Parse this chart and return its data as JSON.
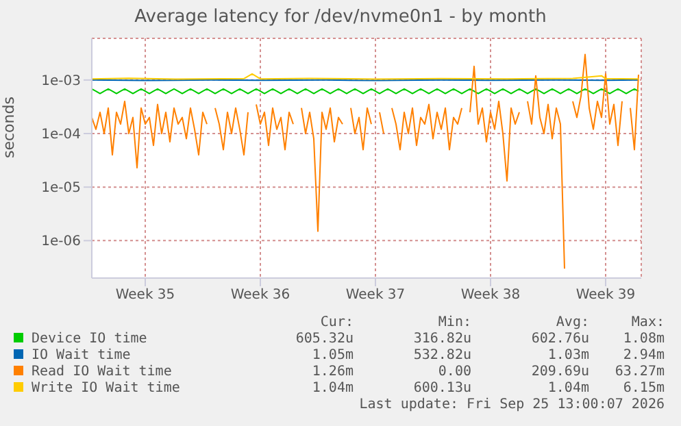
{
  "chart_data": {
    "type": "line",
    "title": "Average latency for /dev/nvme0n1 - by month",
    "ylabel": "seconds",
    "log": "y",
    "grid": true,
    "legend": "bottom",
    "marker": "none",
    "line_style": "solid",
    "xlim": [
      "2026-08-24T06:00",
      "2026-09-26T16:00"
    ],
    "xticks": [
      {
        "value": "2026-08-27T12:00",
        "label": "Week 35"
      },
      {
        "value": "2026-09-03T12:00",
        "label": "Week 36"
      },
      {
        "value": "2026-09-10T12:00",
        "label": "Week 37"
      },
      {
        "value": "2026-09-17T12:00",
        "label": "Week 38"
      },
      {
        "value": "2026-09-24T12:00",
        "label": "Week 39"
      }
    ],
    "ylim": [
      2e-07,
      0.006
    ],
    "yticks": [
      {
        "value": 1e-06,
        "label": "1e-06"
      },
      {
        "value": 1e-05,
        "label": "1e-05"
      },
      {
        "value": 0.0001,
        "label": "1e-04"
      },
      {
        "value": 0.001,
        "label": "1e-03"
      }
    ],
    "x": [
      "2026-08-24T06:00",
      "2026-08-24T12:00",
      "2026-08-24T18:00",
      "2026-08-25T00:00",
      "2026-08-25T06:00",
      "2026-08-25T12:00",
      "2026-08-25T18:00",
      "2026-08-26T00:00",
      "2026-08-26T06:00",
      "2026-08-26T12:00",
      "2026-08-26T18:00",
      "2026-08-27T00:00",
      "2026-08-27T06:00",
      "2026-08-27T12:00",
      "2026-08-27T18:00",
      "2026-08-28T00:00",
      "2026-08-28T06:00",
      "2026-08-28T12:00",
      "2026-08-28T18:00",
      "2026-08-29T00:00",
      "2026-08-29T06:00",
      "2026-08-29T12:00",
      "2026-08-29T18:00",
      "2026-08-30T00:00",
      "2026-08-30T06:00",
      "2026-08-30T12:00",
      "2026-08-30T18:00",
      "2026-08-31T00:00",
      "2026-08-31T06:00",
      "2026-08-31T12:00",
      "2026-08-31T18:00",
      "2026-09-01T00:00",
      "2026-09-01T06:00",
      "2026-09-01T12:00",
      "2026-09-01T18:00",
      "2026-09-02T00:00",
      "2026-09-02T06:00",
      "2026-09-02T12:00",
      "2026-09-02T18:00",
      "2026-09-03T00:00",
      "2026-09-03T06:00",
      "2026-09-03T12:00",
      "2026-09-03T18:00",
      "2026-09-04T00:00",
      "2026-09-04T06:00",
      "2026-09-04T12:00",
      "2026-09-04T18:00",
      "2026-09-05T00:00",
      "2026-09-05T06:00",
      "2026-09-05T12:00",
      "2026-09-05T18:00",
      "2026-09-06T00:00",
      "2026-09-06T06:00",
      "2026-09-06T12:00",
      "2026-09-06T18:00",
      "2026-09-07T00:00",
      "2026-09-07T06:00",
      "2026-09-07T12:00",
      "2026-09-07T18:00",
      "2026-09-08T00:00",
      "2026-09-08T06:00",
      "2026-09-08T12:00",
      "2026-09-08T18:00",
      "2026-09-09T00:00",
      "2026-09-09T06:00",
      "2026-09-09T12:00",
      "2026-09-09T18:00",
      "2026-09-10T00:00",
      "2026-09-10T06:00",
      "2026-09-10T12:00",
      "2026-09-10T18:00",
      "2026-09-11T00:00",
      "2026-09-11T06:00",
      "2026-09-11T12:00",
      "2026-09-11T18:00",
      "2026-09-12T00:00",
      "2026-09-12T06:00",
      "2026-09-12T12:00",
      "2026-09-12T18:00",
      "2026-09-13T00:00",
      "2026-09-13T06:00",
      "2026-09-13T12:00",
      "2026-09-13T18:00",
      "2026-09-14T00:00",
      "2026-09-14T06:00",
      "2026-09-14T12:00",
      "2026-09-14T18:00",
      "2026-09-15T00:00",
      "2026-09-15T06:00",
      "2026-09-15T12:00",
      "2026-09-15T18:00",
      "2026-09-16T00:00",
      "2026-09-16T06:00",
      "2026-09-16T12:00",
      "2026-09-16T18:00",
      "2026-09-17T00:00",
      "2026-09-17T06:00",
      "2026-09-17T12:00",
      "2026-09-17T18:00",
      "2026-09-18T00:00",
      "2026-09-18T06:00",
      "2026-09-18T12:00",
      "2026-09-18T18:00",
      "2026-09-19T00:00",
      "2026-09-19T06:00",
      "2026-09-19T12:00",
      "2026-09-19T18:00",
      "2026-09-20T00:00",
      "2026-09-20T06:00",
      "2026-09-20T12:00",
      "2026-09-20T18:00",
      "2026-09-21T00:00",
      "2026-09-21T06:00",
      "2026-09-21T12:00",
      "2026-09-21T18:00",
      "2026-09-22T00:00",
      "2026-09-22T06:00",
      "2026-09-22T12:00",
      "2026-09-22T18:00",
      "2026-09-23T00:00",
      "2026-09-23T06:00",
      "2026-09-23T12:00",
      "2026-09-23T18:00",
      "2026-09-24T00:00",
      "2026-09-24T06:00",
      "2026-09-24T12:00",
      "2026-09-24T18:00",
      "2026-09-25T00:00",
      "2026-09-25T06:00",
      "2026-09-25T12:00",
      "2026-09-25T18:00",
      "2026-09-26T00:00",
      "2026-09-26T06:00",
      "2026-09-26T12:00"
    ],
    "series": [
      {
        "name": "Device IO time",
        "color": "#00cc00",
        "values": [
          0.00068,
          0.00062,
          0.00056,
          0.00062,
          0.00068,
          0.00062,
          0.00056,
          0.00062,
          0.00068,
          0.00062,
          0.00056,
          0.00062,
          0.00068,
          0.00062,
          0.00056,
          0.00062,
          0.00068,
          0.00062,
          0.00056,
          0.00062,
          0.00068,
          0.00062,
          0.00056,
          0.00062,
          0.00068,
          0.00062,
          0.00056,
          0.00062,
          0.00068,
          0.00062,
          0.00056,
          0.00062,
          0.00068,
          0.00062,
          0.00056,
          0.00062,
          0.00068,
          0.00062,
          0.00056,
          0.00062,
          0.00068,
          0.00062,
          0.00056,
          0.00062,
          0.00068,
          0.00062,
          0.00056,
          0.00062,
          0.00068,
          0.00062,
          0.00056,
          0.00062,
          0.00068,
          0.00062,
          0.00056,
          0.00062,
          0.00068,
          0.00062,
          0.00056,
          0.00062,
          0.00068,
          0.00062,
          0.00056,
          0.00062,
          0.00068,
          0.00062,
          0.00056,
          0.00062,
          0.00068,
          0.00062,
          0.00056,
          0.00062,
          0.00068,
          0.00062,
          0.00056,
          0.00062,
          0.00068,
          0.00062,
          0.00056,
          0.00062,
          0.00068,
          0.00062,
          0.00056,
          0.00062,
          0.00068,
          0.00062,
          0.00056,
          0.00062,
          0.00068,
          0.00062,
          0.00056,
          0.00062,
          0.00068,
          0.00062,
          0.00056,
          0.00062,
          0.00068,
          0.00062,
          0.00056,
          0.00062,
          0.00068,
          0.00062,
          0.00056,
          0.00062,
          0.00068,
          0.00062,
          0.00056,
          0.00062,
          0.00068,
          0.00062,
          0.00056,
          0.00062,
          0.00068,
          0.00062,
          0.00056,
          0.00062,
          0.00068,
          0.00062,
          0.00056,
          0.00062,
          0.00068,
          0.00062,
          0.00056,
          0.00062,
          0.00068,
          0.00062,
          0.00056,
          0.00062,
          0.00068,
          0.00062,
          0.00056,
          0.00062,
          0.00068,
          0.00062
        ]
      },
      {
        "name": "IO Wait time",
        "color": "#0066b3",
        "x": [
          "2026-08-24T06:00",
          "2026-08-27T12:00",
          "2026-08-31T12:00",
          "2026-09-03T12:00",
          "2026-09-07T12:00",
          "2026-09-10T12:00",
          "2026-09-14T12:00",
          "2026-09-17T12:00",
          "2026-09-21T12:00",
          "2026-09-24T12:00",
          "2026-09-26T12:00"
        ],
        "values": [
          0.001,
          0.00098,
          0.001,
          0.00099,
          0.001,
          0.00098,
          0.001,
          0.00099,
          0.001,
          0.00099,
          0.001
        ]
      },
      {
        "name": "Read IO Wait time",
        "color": "#ff8000",
        "values": [
          0.0002,
          0.00012,
          0.00025,
          0.0001,
          0.0003,
          4e-05,
          0.00025,
          0.00015,
          0.0004,
          0.0001,
          0.0002,
          2.3e-05,
          0.0003,
          0.00015,
          0.0002,
          6e-05,
          0.00035,
          0.0001,
          0.00025,
          7e-05,
          0.0003,
          0.00015,
          0.0002,
          8e-05,
          0.0003,
          0.00012,
          4e-05,
          0.00025,
          0.00015,
          null,
          0.0003,
          0.00015,
          5e-05,
          0.00025,
          0.0001,
          0.0003,
          0.00012,
          4e-05,
          0.00025,
          null,
          0.00035,
          0.00015,
          0.00025,
          6e-05,
          0.0003,
          0.00012,
          0.0002,
          5e-05,
          0.00025,
          0.00015,
          null,
          0.0003,
          0.0001,
          0.00025,
          8e-05,
          1.5e-06,
          0.00025,
          0.00012,
          0.0003,
          7e-05,
          0.0002,
          0.00015,
          null,
          0.0003,
          0.0001,
          0.0002,
          5e-05,
          0.0003,
          0.00015,
          null,
          0.00025,
          0.0001,
          null,
          0.0003,
          0.00015,
          5e-05,
          0.00025,
          0.0001,
          0.0003,
          6e-05,
          0.0002,
          0.00015,
          0.00035,
          8e-05,
          0.00025,
          0.00012,
          0.0003,
          5e-05,
          0.0002,
          0.00015,
          0.0003,
          null,
          0.00025,
          0.0018,
          0.00015,
          0.0003,
          7e-05,
          0.00025,
          0.00012,
          0.0004,
          0.0001,
          1.3e-05,
          0.0003,
          0.00015,
          0.00025,
          null,
          0.0004,
          0.00015,
          0.0012,
          0.0002,
          0.0001,
          0.00035,
          8e-05,
          0.0003,
          0.00015,
          3e-07,
          null,
          0.0004,
          0.0002,
          0.0005,
          0.003,
          0.0003,
          0.00012,
          0.0004,
          0.0002,
          0.0013,
          0.00015,
          0.00035,
          6e-05,
          0.0004,
          null,
          0.0003,
          5e-05,
          0.00126
        ]
      },
      {
        "name": "Write IO Wait time",
        "color": "#ffcc00",
        "x": [
          "2026-08-24T06:00",
          "2026-08-26T12:00",
          "2026-08-29T12:00",
          "2026-09-02T12:00",
          "2026-09-03T00:00",
          "2026-09-03T12:00",
          "2026-09-06T12:00",
          "2026-09-10T12:00",
          "2026-09-14T12:00",
          "2026-09-18T12:00",
          "2026-09-22T12:00",
          "2026-09-24T06:00",
          "2026-09-24T12:00",
          "2026-09-26T12:00"
        ],
        "values": [
          0.00105,
          0.00108,
          0.00104,
          0.00106,
          0.0013,
          0.00105,
          0.00107,
          0.00104,
          0.00106,
          0.00105,
          0.00107,
          0.0012,
          0.00106,
          0.00105
        ]
      }
    ],
    "annotations": [
      "Cur:",
      "Min:",
      "Avg:",
      "Max:",
      "605.32u",
      "316.82u",
      "602.76u",
      "1.08m",
      "1.05m",
      "532.82u",
      "1.03m",
      "2.94m",
      "1.26m",
      "0.00",
      "209.69u",
      "63.27m",
      "1.04m",
      "600.13u",
      "1.04m",
      "6.15m",
      "Last update: Fri Sep 25 13:00:07 2026"
    ]
  }
}
